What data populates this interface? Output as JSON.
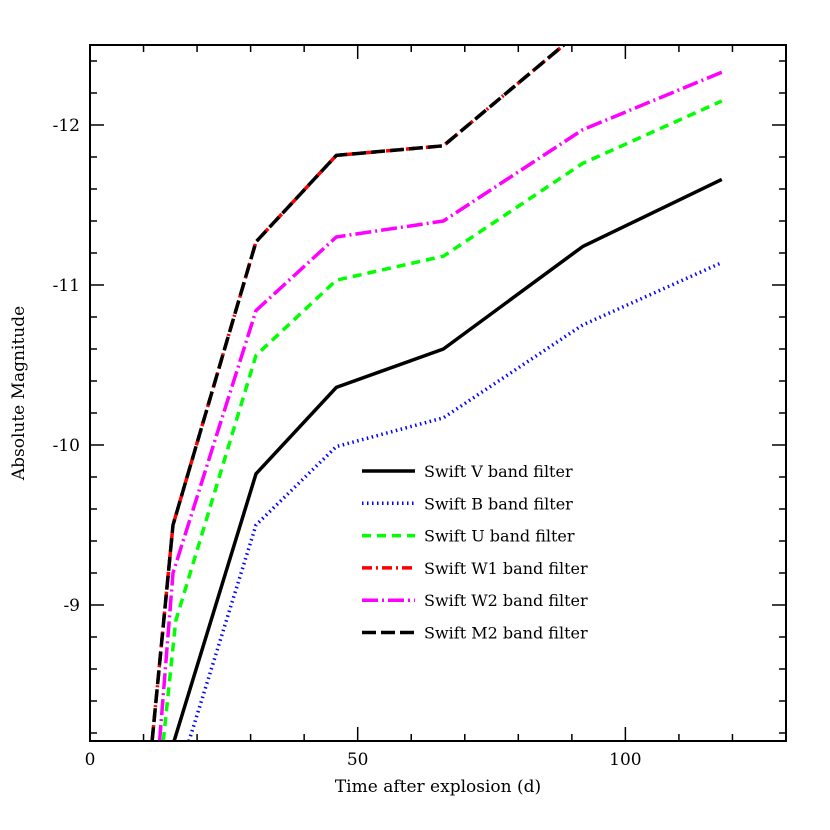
{
  "chart_data": {
    "type": "line",
    "xlabel": "Time after explosion (d)",
    "ylabel": "Absolute Magnitude",
    "xlim": [
      0,
      130
    ],
    "ylim": [
      -8.15,
      -12.5
    ],
    "y_inverted": true,
    "x_ticks": [
      0,
      50,
      100
    ],
    "y_ticks": [
      -9,
      -10,
      -11,
      -12
    ],
    "x_tick_labels": [
      "0",
      "50",
      "100"
    ],
    "y_tick_labels": [
      "-9",
      "-10",
      "-11",
      "-12"
    ],
    "legend_position": "lower-center",
    "grid": false,
    "series": [
      {
        "name": "Swift V band filter",
        "color": "#000000",
        "dash": "solid",
        "x": [
          15.7,
          31,
          46,
          66,
          92,
          118
        ],
        "y": [
          -8.15,
          -9.82,
          -10.36,
          -10.6,
          -11.24,
          -11.66
        ]
      },
      {
        "name": "Swift B band filter",
        "color": "#0000ff",
        "dash": "dotted",
        "x": [
          18.5,
          31,
          46,
          66,
          92,
          118
        ],
        "y": [
          -8.15,
          -9.5,
          -9.99,
          -10.17,
          -10.75,
          -11.14
        ]
      },
      {
        "name": "Swift U band filter",
        "color": "#00ff00",
        "dash": "dashed",
        "x": [
          13.7,
          16,
          31,
          46,
          66,
          92,
          118
        ],
        "y": [
          -8.15,
          -8.9,
          -10.56,
          -11.03,
          -11.18,
          -11.76,
          -12.15
        ]
      },
      {
        "name": "Swift W1 band filter",
        "color": "#ff0000",
        "dash": "dashdot",
        "x": [
          11.6,
          15.5,
          31,
          46,
          66,
          88.5
        ],
        "y": [
          -8.15,
          -9.5,
          -11.27,
          -11.81,
          -11.87,
          -12.5
        ]
      },
      {
        "name": "Swift W2 band filter",
        "color": "#ff00ff",
        "dash": "longdashdot",
        "x": [
          13,
          15.5,
          31,
          46,
          66,
          92,
          118
        ],
        "y": [
          -8.15,
          -9.2,
          -10.84,
          -11.3,
          -11.4,
          -11.97,
          -12.33
        ]
      },
      {
        "name": "Swift M2 band filter",
        "color": "#000000",
        "dash": "longdash",
        "x": [
          11.6,
          15.5,
          31,
          46,
          66,
          88.5
        ],
        "y": [
          -8.15,
          -9.5,
          -11.27,
          -11.81,
          -11.87,
          -12.5
        ]
      }
    ]
  }
}
